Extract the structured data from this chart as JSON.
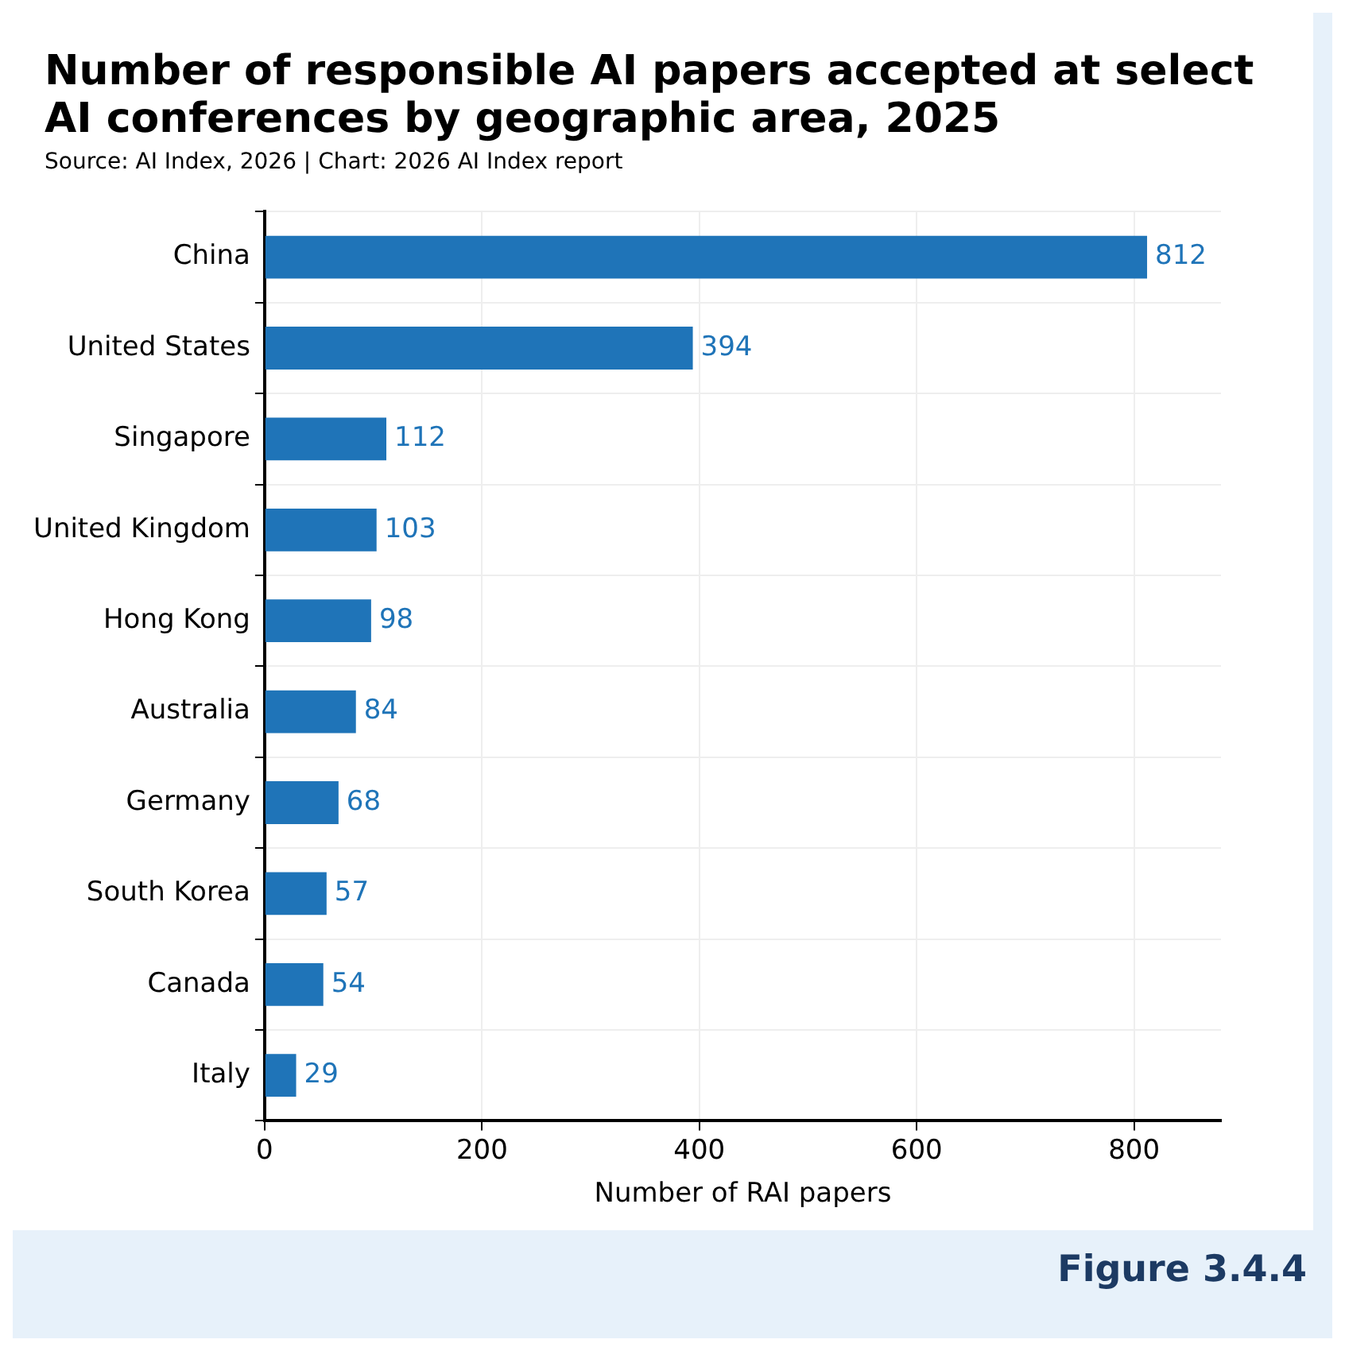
{
  "chart_data": {
    "type": "bar",
    "orientation": "horizontal",
    "title": "Number of responsible AI papers accepted at select AI conferences by geographic area, 2025",
    "subtitle": "Source: AI Index, 2026 | Chart: 2026 AI Index report",
    "xlabel": "Number of RAI papers",
    "categories": [
      "China",
      "United States",
      "Singapore",
      "United Kingdom",
      "Hong Kong",
      "Australia",
      "Germany",
      "South Korea",
      "Canada",
      "Italy"
    ],
    "values": [
      812,
      394,
      112,
      103,
      98,
      84,
      68,
      57,
      54,
      29
    ],
    "color": "#1f74b8",
    "xlim": [
      0,
      880
    ],
    "xticks": [
      0,
      200,
      400,
      600,
      800
    ],
    "grid": true,
    "data_labels": true,
    "annotations": [
      "Figure 3.4.4"
    ]
  }
}
